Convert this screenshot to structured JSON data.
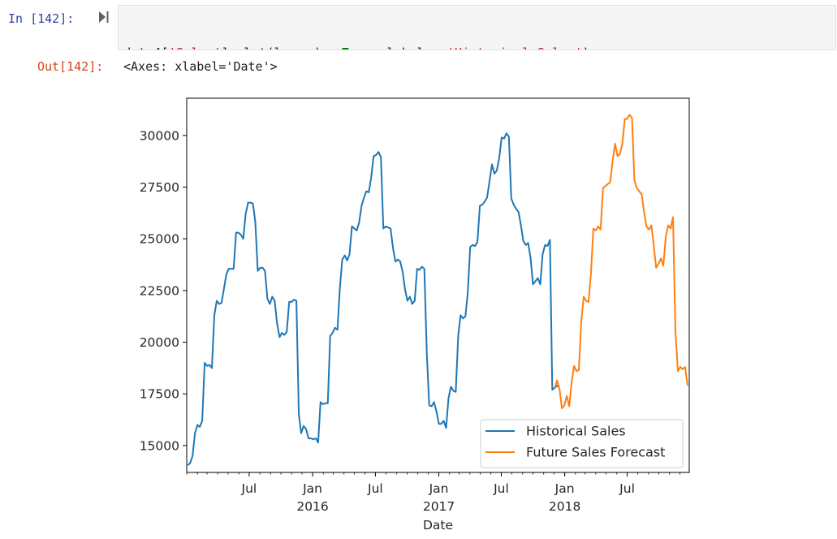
{
  "cell_in": {
    "prompt": "In [142]:",
    "code": [
      [
        {
          "t": "data4[",
          "c": ""
        },
        {
          "t": "'Sales'",
          "c": "tok-str"
        },
        {
          "t": "].plot(legend ",
          "c": ""
        },
        {
          "t": "=",
          "c": "tok-op"
        },
        {
          "t": " ",
          "c": ""
        },
        {
          "t": "True",
          "c": "tok-kw"
        },
        {
          "t": ", label ",
          "c": ""
        },
        {
          "t": "=",
          "c": "tok-op"
        },
        {
          "t": " ",
          "c": ""
        },
        {
          "t": "'Historical Sales'",
          "c": "tok-str"
        },
        {
          "t": ")",
          "c": ""
        }
      ],
      [
        {
          "t": "forecast.plot(legend ",
          "c": ""
        },
        {
          "t": "=",
          "c": "tok-op"
        },
        {
          "t": " ",
          "c": ""
        },
        {
          "t": "True",
          "c": "tok-kw"
        },
        {
          "t": ", label ",
          "c": ""
        },
        {
          "t": "=",
          "c": "tok-op"
        },
        {
          "t": " ",
          "c": ""
        },
        {
          "t": "'Future Sales Forecast'",
          "c": "tok-str"
        },
        {
          "t": ")",
          "c": ""
        }
      ]
    ]
  },
  "cell_out": {
    "prompt": "Out[142]:",
    "text": "<Axes: xlabel='Date'>"
  },
  "chart_data": {
    "type": "line",
    "title": "",
    "xlabel": "Date",
    "ylabel": "",
    "ylim": [
      13700,
      31800
    ],
    "xlim": [
      "2015-01",
      "2018-12"
    ],
    "grid": false,
    "legend": "lower-right",
    "y_ticks": [
      15000,
      17500,
      20000,
      22500,
      25000,
      27500,
      30000
    ],
    "x_ticks": [
      {
        "at": "2015-07",
        "label": "Jul",
        "year": ""
      },
      {
        "at": "2016-01",
        "label": "Jan",
        "year": "2016"
      },
      {
        "at": "2016-07",
        "label": "Jul",
        "year": ""
      },
      {
        "at": "2017-01",
        "label": "Jan",
        "year": "2017"
      },
      {
        "at": "2017-07",
        "label": "Jul",
        "year": ""
      },
      {
        "at": "2018-01",
        "label": "Jan",
        "year": "2018"
      },
      {
        "at": "2018-07",
        "label": "Jul",
        "year": ""
      }
    ],
    "series": [
      {
        "name": "Historical Sales",
        "color": "#1f77b4",
        "points": [
          [
            "2015-01-04",
            14050
          ],
          [
            "2015-01-11",
            14150
          ],
          [
            "2015-01-18",
            14500
          ],
          [
            "2015-01-25",
            15600
          ],
          [
            "2015-02-01",
            16000
          ],
          [
            "2015-02-08",
            15900
          ],
          [
            "2015-02-15",
            16200
          ],
          [
            "2015-02-22",
            19000
          ],
          [
            "2015-03-01",
            18850
          ],
          [
            "2015-03-08",
            18900
          ],
          [
            "2015-03-15",
            18750
          ],
          [
            "2015-03-22",
            21300
          ],
          [
            "2015-03-29",
            22000
          ],
          [
            "2015-04-05",
            21850
          ],
          [
            "2015-04-12",
            21900
          ],
          [
            "2015-04-19",
            22600
          ],
          [
            "2015-04-26",
            23300
          ],
          [
            "2015-05-03",
            23550
          ],
          [
            "2015-05-10",
            23550
          ],
          [
            "2015-05-17",
            23550
          ],
          [
            "2015-05-24",
            25300
          ],
          [
            "2015-05-31",
            25300
          ],
          [
            "2015-06-07",
            25200
          ],
          [
            "2015-06-14",
            25000
          ],
          [
            "2015-06-21",
            26200
          ],
          [
            "2015-06-28",
            26750
          ],
          [
            "2015-07-05",
            26750
          ],
          [
            "2015-07-12",
            26700
          ],
          [
            "2015-07-19",
            25800
          ],
          [
            "2015-07-26",
            23450
          ],
          [
            "2015-08-02",
            23600
          ],
          [
            "2015-08-09",
            23600
          ],
          [
            "2015-08-16",
            23450
          ],
          [
            "2015-08-23",
            22100
          ],
          [
            "2015-08-30",
            21850
          ],
          [
            "2015-09-06",
            22200
          ],
          [
            "2015-09-13",
            22000
          ],
          [
            "2015-09-20",
            20900
          ],
          [
            "2015-09-27",
            20250
          ],
          [
            "2015-10-04",
            20450
          ],
          [
            "2015-10-11",
            20350
          ],
          [
            "2015-10-18",
            20500
          ],
          [
            "2015-10-25",
            21950
          ],
          [
            "2015-11-01",
            21950
          ],
          [
            "2015-11-08",
            22050
          ],
          [
            "2015-11-15",
            22000
          ],
          [
            "2015-11-22",
            16500
          ],
          [
            "2015-11-29",
            15600
          ],
          [
            "2015-12-06",
            15950
          ],
          [
            "2015-12-13",
            15800
          ],
          [
            "2015-12-20",
            15350
          ],
          [
            "2015-12-27",
            15350
          ],
          [
            "2016-01-03",
            15300
          ],
          [
            "2016-01-10",
            15350
          ],
          [
            "2016-01-17",
            15150
          ],
          [
            "2016-01-24",
            17100
          ],
          [
            "2016-01-31",
            17000
          ],
          [
            "2016-02-07",
            17050
          ],
          [
            "2016-02-14",
            17050
          ],
          [
            "2016-02-21",
            20300
          ],
          [
            "2016-02-28",
            20450
          ],
          [
            "2016-03-06",
            20700
          ],
          [
            "2016-03-13",
            20600
          ],
          [
            "2016-03-20",
            22600
          ],
          [
            "2016-03-27",
            24000
          ],
          [
            "2016-04-03",
            24200
          ],
          [
            "2016-04-10",
            23950
          ],
          [
            "2016-04-17",
            24250
          ],
          [
            "2016-04-24",
            25600
          ],
          [
            "2016-05-01",
            25500
          ],
          [
            "2016-05-08",
            25400
          ],
          [
            "2016-05-15",
            25800
          ],
          [
            "2016-05-22",
            26600
          ],
          [
            "2016-05-29",
            27000
          ],
          [
            "2016-06-05",
            27300
          ],
          [
            "2016-06-12",
            27250
          ],
          [
            "2016-06-19",
            28000
          ],
          [
            "2016-06-26",
            29000
          ],
          [
            "2016-07-03",
            29050
          ],
          [
            "2016-07-10",
            29200
          ],
          [
            "2016-07-17",
            28950
          ],
          [
            "2016-07-24",
            25500
          ],
          [
            "2016-07-31",
            25600
          ],
          [
            "2016-08-07",
            25550
          ],
          [
            "2016-08-14",
            25500
          ],
          [
            "2016-08-21",
            24550
          ],
          [
            "2016-08-28",
            23900
          ],
          [
            "2016-09-04",
            24000
          ],
          [
            "2016-09-11",
            23900
          ],
          [
            "2016-09-18",
            23400
          ],
          [
            "2016-09-25",
            22550
          ],
          [
            "2016-10-02",
            22000
          ],
          [
            "2016-10-09",
            22200
          ],
          [
            "2016-10-16",
            21850
          ],
          [
            "2016-10-23",
            22000
          ],
          [
            "2016-10-30",
            23550
          ],
          [
            "2016-11-06",
            23500
          ],
          [
            "2016-11-13",
            23650
          ],
          [
            "2016-11-20",
            23550
          ],
          [
            "2016-11-27",
            19500
          ],
          [
            "2016-12-04",
            16950
          ],
          [
            "2016-12-11",
            16900
          ],
          [
            "2016-12-18",
            17100
          ],
          [
            "2016-12-25",
            16650
          ],
          [
            "2017-01-01",
            16050
          ],
          [
            "2017-01-08",
            16050
          ],
          [
            "2017-01-15",
            16200
          ],
          [
            "2017-01-22",
            15850
          ],
          [
            "2017-01-29",
            17300
          ],
          [
            "2017-02-05",
            17850
          ],
          [
            "2017-02-12",
            17650
          ],
          [
            "2017-02-19",
            17600
          ],
          [
            "2017-02-26",
            20300
          ],
          [
            "2017-03-05",
            21300
          ],
          [
            "2017-03-12",
            21150
          ],
          [
            "2017-03-19",
            21250
          ],
          [
            "2017-03-26",
            22400
          ],
          [
            "2017-04-02",
            24600
          ],
          [
            "2017-04-09",
            24700
          ],
          [
            "2017-04-16",
            24650
          ],
          [
            "2017-04-23",
            24850
          ],
          [
            "2017-04-30",
            26600
          ],
          [
            "2017-05-07",
            26650
          ],
          [
            "2017-05-14",
            26800
          ],
          [
            "2017-05-21",
            27000
          ],
          [
            "2017-05-28",
            27800
          ],
          [
            "2017-06-04",
            28600
          ],
          [
            "2017-06-11",
            28150
          ],
          [
            "2017-06-18",
            28300
          ],
          [
            "2017-06-25",
            28900
          ],
          [
            "2017-07-02",
            29900
          ],
          [
            "2017-07-09",
            29850
          ],
          [
            "2017-07-16",
            30100
          ],
          [
            "2017-07-23",
            29950
          ],
          [
            "2017-07-30",
            26950
          ],
          [
            "2017-08-06",
            26650
          ],
          [
            "2017-08-13",
            26450
          ],
          [
            "2017-08-20",
            26300
          ],
          [
            "2017-08-27",
            25650
          ],
          [
            "2017-09-03",
            24900
          ],
          [
            "2017-09-10",
            24700
          ],
          [
            "2017-09-17",
            24800
          ],
          [
            "2017-09-24",
            24050
          ],
          [
            "2017-10-01",
            22800
          ],
          [
            "2017-10-08",
            22950
          ],
          [
            "2017-10-15",
            23100
          ],
          [
            "2017-10-22",
            22800
          ],
          [
            "2017-10-29",
            24250
          ],
          [
            "2017-11-05",
            24700
          ],
          [
            "2017-11-12",
            24650
          ],
          [
            "2017-11-19",
            24950
          ],
          [
            "2017-11-26",
            17700
          ],
          [
            "2017-12-03",
            17800
          ],
          [
            "2017-12-10",
            17900
          ],
          [
            "2017-12-17",
            17800
          ]
        ]
      },
      {
        "name": "Future Sales Forecast",
        "color": "#ff7f0e",
        "points": [
          [
            "2017-12-03",
            17800
          ],
          [
            "2017-12-10",
            18150
          ],
          [
            "2017-12-17",
            17700
          ],
          [
            "2017-12-24",
            16800
          ],
          [
            "2017-12-31",
            16950
          ],
          [
            "2018-01-07",
            17400
          ],
          [
            "2018-01-14",
            16900
          ],
          [
            "2018-01-21",
            18050
          ],
          [
            "2018-01-28",
            18850
          ],
          [
            "2018-02-04",
            18600
          ],
          [
            "2018-02-11",
            18650
          ],
          [
            "2018-02-18",
            21000
          ],
          [
            "2018-02-25",
            22200
          ],
          [
            "2018-03-04",
            22000
          ],
          [
            "2018-03-11",
            21950
          ],
          [
            "2018-03-18",
            23300
          ],
          [
            "2018-03-25",
            25500
          ],
          [
            "2018-04-01",
            25400
          ],
          [
            "2018-04-08",
            25600
          ],
          [
            "2018-04-15",
            25450
          ],
          [
            "2018-04-22",
            27450
          ],
          [
            "2018-04-29",
            27550
          ],
          [
            "2018-05-06",
            27650
          ],
          [
            "2018-05-13",
            27750
          ],
          [
            "2018-05-20",
            28800
          ],
          [
            "2018-05-27",
            29600
          ],
          [
            "2018-06-03",
            29000
          ],
          [
            "2018-06-10",
            29100
          ],
          [
            "2018-06-17",
            29600
          ],
          [
            "2018-06-24",
            30800
          ],
          [
            "2018-07-01",
            30800
          ],
          [
            "2018-07-08",
            31000
          ],
          [
            "2018-07-15",
            30850
          ],
          [
            "2018-07-22",
            27850
          ],
          [
            "2018-07-29",
            27450
          ],
          [
            "2018-08-05",
            27300
          ],
          [
            "2018-08-12",
            27150
          ],
          [
            "2018-08-19",
            26300
          ],
          [
            "2018-08-26",
            25600
          ],
          [
            "2018-09-02",
            25450
          ],
          [
            "2018-09-09",
            25650
          ],
          [
            "2018-09-16",
            24700
          ],
          [
            "2018-09-23",
            23600
          ],
          [
            "2018-09-30",
            23800
          ],
          [
            "2018-10-07",
            24050
          ],
          [
            "2018-10-14",
            23700
          ],
          [
            "2018-10-21",
            25100
          ],
          [
            "2018-10-28",
            25650
          ],
          [
            "2018-11-04",
            25500
          ],
          [
            "2018-11-11",
            26050
          ],
          [
            "2018-11-18",
            20500
          ],
          [
            "2018-11-25",
            18600
          ],
          [
            "2018-12-02",
            18800
          ],
          [
            "2018-12-09",
            18700
          ],
          [
            "2018-12-16",
            18800
          ],
          [
            "2018-12-23",
            17900
          ]
        ]
      }
    ]
  }
}
